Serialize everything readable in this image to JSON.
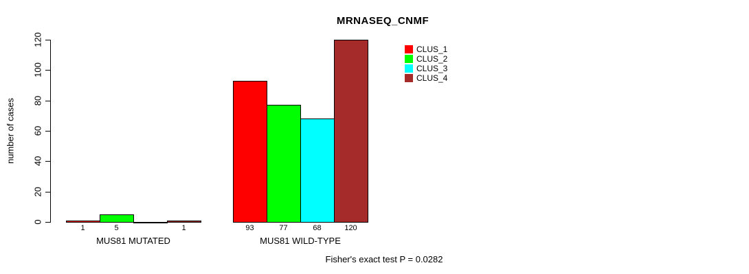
{
  "title": "MRNASEQ_CNMF",
  "footer": "Fisher's exact test P = 0.0282",
  "legend": {
    "items": [
      {
        "label": "CLUS_1",
        "color": "#FF0000"
      },
      {
        "label": "CLUS_2",
        "color": "#00FF00"
      },
      {
        "label": "CLUS_3",
        "color": "#00FFFF"
      },
      {
        "label": "CLUS_4",
        "color": "#A52A2A"
      }
    ]
  },
  "chart_data": {
    "type": "bar",
    "title": "MRNASEQ_CNMF",
    "xlabel": "",
    "ylabel": "number of cases",
    "ylim": [
      0,
      120
    ],
    "yticks": [
      0,
      20,
      40,
      60,
      80,
      100,
      120
    ],
    "grid": false,
    "legend_position": "top-right",
    "series_names": [
      "CLUS_1",
      "CLUS_2",
      "CLUS_3",
      "CLUS_4"
    ],
    "series_colors": [
      "#FF0000",
      "#00FF00",
      "#00FFFF",
      "#A52A2A"
    ],
    "groups": [
      {
        "label": "MUS81 MUTATED",
        "values": [
          1,
          5,
          0,
          1
        ],
        "bar_labels": [
          "1",
          "5",
          "",
          "1"
        ]
      },
      {
        "label": "MUS81 WILD-TYPE",
        "values": [
          93,
          77,
          68,
          120
        ],
        "bar_labels": [
          "93",
          "77",
          "68",
          "120"
        ]
      }
    ],
    "annotation": "Fisher's exact test P = 0.0282"
  }
}
